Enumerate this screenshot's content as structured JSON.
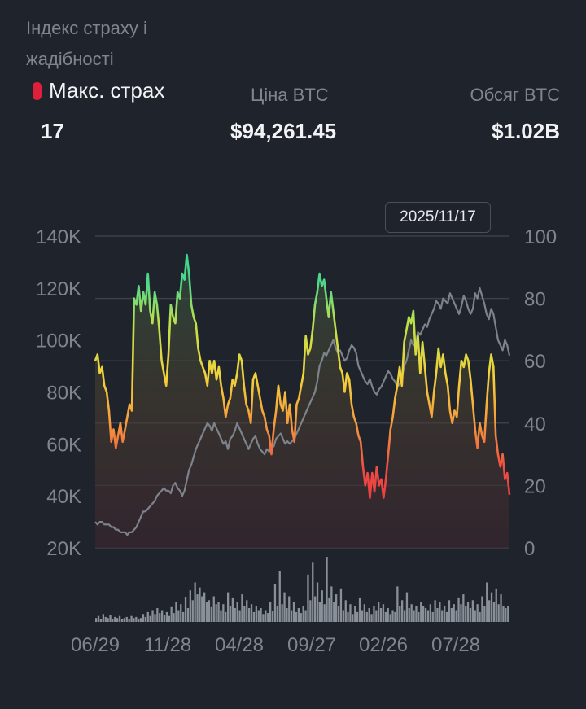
{
  "header": {
    "title": "Індекс страху і жадібності",
    "fear_label": "Макс. страх",
    "fear_value": "17",
    "price_label": "Ціна BTC",
    "price_value": "$94,261.45",
    "volume_label": "Обсяг BTC",
    "volume_value": "$1.02B"
  },
  "tooltip": {
    "date": "2025/11/17"
  },
  "colors": {
    "background": "#1f232b",
    "price_line": "#7d838d",
    "grid": "#3b4049",
    "volume": "#8a9099",
    "extreme_fear": "#e0203a"
  },
  "chart_data": {
    "type": "line",
    "x_tick_labels": [
      "06/29",
      "11/28",
      "04/28",
      "09/27",
      "02/26",
      "07/28"
    ],
    "y_left_ticks": [
      "140K",
      "120K",
      "100K",
      "80K",
      "60K",
      "40K",
      "20K"
    ],
    "y_right_ticks": [
      "100",
      "80",
      "60",
      "40",
      "20",
      "0"
    ],
    "y_left_range": [
      20000,
      140000
    ],
    "y_right_range": [
      0,
      100
    ],
    "grid": true,
    "series": [
      {
        "axis": "right",
        "color_scale": "fear-greed",
        "values": [
          60,
          62,
          56,
          58,
          52,
          50,
          44,
          34,
          38,
          32,
          36,
          40,
          34,
          38,
          42,
          46,
          44,
          80,
          78,
          84,
          76,
          82,
          78,
          88,
          76,
          72,
          82,
          78,
          70,
          60,
          56,
          52,
          62,
          78,
          74,
          72,
          82,
          80,
          88,
          86,
          94,
          88,
          78,
          74,
          72,
          64,
          60,
          58,
          56,
          52,
          60,
          56,
          60,
          54,
          58,
          52,
          48,
          42,
          46,
          48,
          54,
          52,
          56,
          62,
          60,
          52,
          46,
          44,
          40,
          54,
          56,
          52,
          48,
          44,
          42,
          38,
          36,
          30,
          38,
          44,
          52,
          46,
          44,
          50,
          40,
          46,
          38,
          34,
          46,
          48,
          52,
          56,
          68,
          62,
          64,
          70,
          78,
          82,
          88,
          84,
          86,
          80,
          74,
          82,
          76,
          70,
          64,
          58,
          56,
          50,
          56,
          54,
          46,
          42,
          40,
          36,
          34,
          26,
          20,
          24,
          16,
          24,
          18,
          26,
          20,
          22,
          16,
          22,
          30,
          38,
          42,
          48,
          52,
          58,
          52,
          66,
          70,
          74,
          72,
          76,
          62,
          68,
          56,
          66,
          58,
          50,
          46,
          42,
          50,
          56,
          64,
          58,
          62,
          56,
          52,
          44,
          40,
          44,
          42,
          52,
          60,
          58,
          62,
          60,
          54,
          46,
          38,
          32,
          40,
          36,
          34,
          46,
          56,
          62,
          58,
          36,
          30,
          26,
          30,
          22,
          24,
          17
        ]
      },
      {
        "axis": "left",
        "name": "Ціна BTC",
        "values": [
          30,
          29,
          30,
          30,
          29,
          29,
          29,
          28,
          28,
          27,
          27,
          26,
          26,
          26,
          25,
          26,
          26,
          27,
          28,
          30,
          32,
          34,
          34,
          35,
          36,
          37,
          38,
          40,
          41,
          42,
          43,
          42,
          42,
          41,
          44,
          45,
          43,
          42,
          40,
          42,
          46,
          50,
          52,
          55,
          58,
          60,
          62,
          64,
          66,
          68,
          67,
          65,
          68,
          66,
          64,
          62,
          60,
          61,
          58,
          62,
          63,
          65,
          68,
          66,
          64,
          62,
          60,
          58,
          60,
          62,
          63,
          60,
          58,
          57,
          56,
          58,
          57,
          60,
          59,
          62,
          63,
          64,
          62,
          60,
          61,
          60,
          61,
          62,
          64,
          66,
          68,
          70,
          72,
          74,
          76,
          78,
          80,
          84,
          90,
          92,
          95,
          94,
          96,
          98,
          100,
          97,
          95,
          96,
          94,
          92,
          93,
          96,
          98,
          97,
          95,
          90,
          88,
          86,
          84,
          83,
          85,
          82,
          80,
          79,
          81,
          82,
          84,
          86,
          88,
          87,
          85,
          84,
          82,
          83,
          85,
          90,
          92,
          96,
          100,
          98,
          99,
          103,
          102,
          104,
          106,
          105,
          108,
          110,
          112,
          115,
          114,
          112,
          116,
          115,
          114,
          118,
          116,
          114,
          112,
          110,
          113,
          117,
          115,
          112,
          110,
          112,
          118,
          116,
          120,
          117,
          114,
          110,
          108,
          112,
          110,
          105,
          100,
          98,
          96,
          100,
          98,
          94
        ]
      }
    ],
    "volume": [
      4,
      6,
      3,
      8,
      5,
      4,
      7,
      3,
      5,
      4,
      6,
      3,
      4,
      5,
      3,
      6,
      4,
      5,
      3,
      4,
      8,
      5,
      10,
      6,
      12,
      8,
      14,
      9,
      12,
      7,
      10,
      6,
      15,
      9,
      20,
      12,
      18,
      10,
      25,
      14,
      32,
      22,
      40,
      28,
      35,
      26,
      30,
      20,
      22,
      15,
      26,
      18,
      20,
      12,
      18,
      10,
      30,
      16,
      24,
      14,
      20,
      12,
      28,
      16,
      22,
      14,
      18,
      10,
      16,
      12,
      14,
      8,
      12,
      9,
      20,
      11,
      38,
      16,
      52,
      18,
      30,
      14,
      26,
      12,
      20,
      10,
      14,
      9,
      16,
      12,
      48,
      22,
      60,
      26,
      40,
      20,
      32,
      18,
      66,
      24,
      36,
      20,
      28,
      16,
      34,
      12,
      22,
      10,
      18,
      8,
      16,
      10,
      24,
      12,
      18,
      10,
      14,
      8,
      16,
      12,
      20,
      14,
      18,
      10,
      14,
      8,
      12,
      10,
      36,
      16,
      22,
      12,
      30,
      14,
      18,
      12,
      16,
      10,
      20,
      16,
      14,
      12,
      18,
      10,
      22,
      14,
      20,
      12,
      16,
      10,
      22,
      14,
      18,
      12,
      24,
      18,
      28,
      16,
      20,
      14,
      22,
      12,
      18,
      10,
      26,
      16,
      40,
      22,
      30,
      20,
      34,
      18,
      28,
      16,
      14,
      16
    ]
  }
}
